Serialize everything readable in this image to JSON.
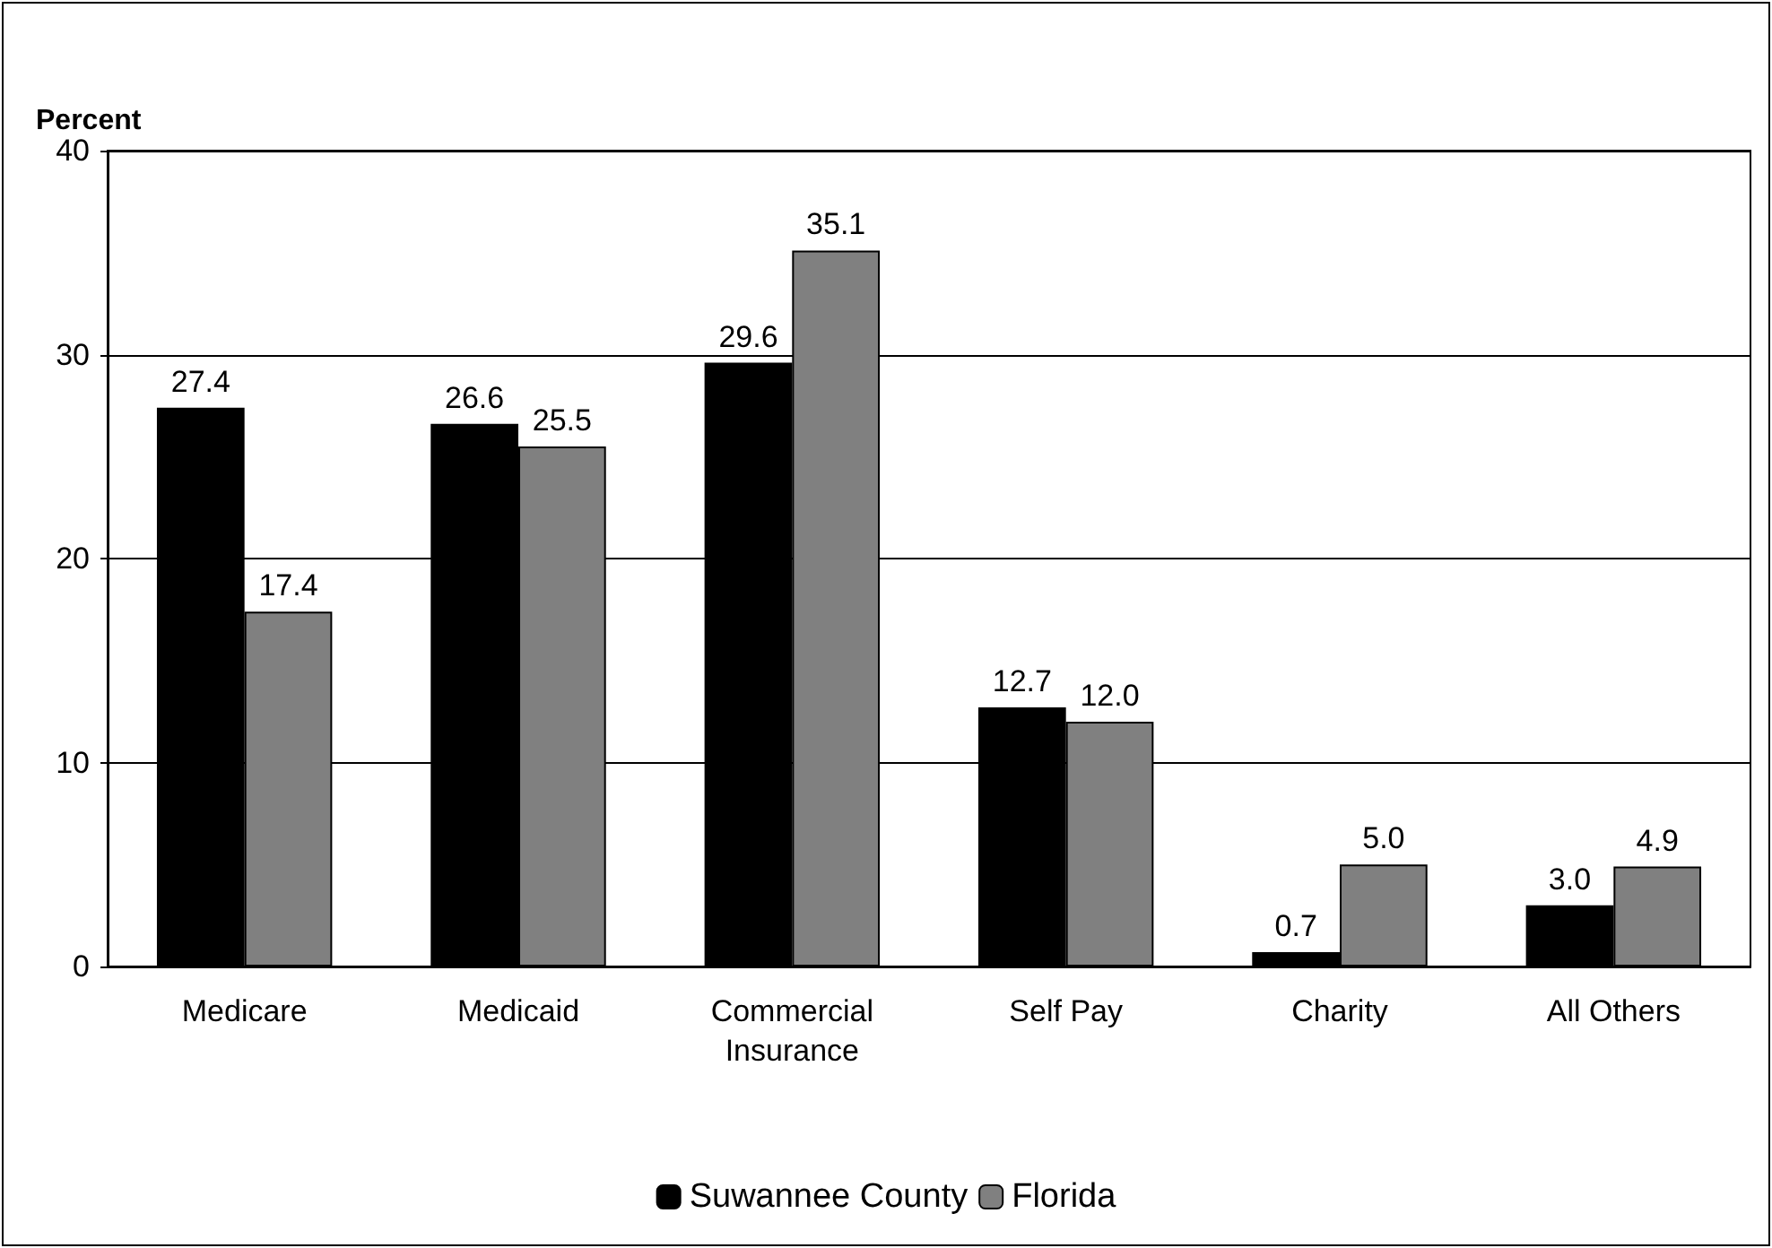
{
  "chart_data": {
    "type": "bar",
    "ylabel": "Percent",
    "categories": [
      "Medicare",
      "Medicaid",
      "Commercial\nInsurance",
      "Self Pay",
      "Charity",
      "All Others"
    ],
    "series": [
      {
        "name": "Suwannee County",
        "color": "#000000",
        "values": [
          27.4,
          26.6,
          29.6,
          12.7,
          0.7,
          3.0
        ],
        "value_labels": [
          "27.4",
          "26.6",
          "29.6",
          "12.7",
          "0.7",
          "3.0"
        ]
      },
      {
        "name": "Florida",
        "color": "#808080",
        "values": [
          17.4,
          25.5,
          35.1,
          12.0,
          5.0,
          4.9
        ],
        "value_labels": [
          "17.4",
          "25.5",
          "35.1",
          "12.0",
          "5.0",
          "4.9"
        ]
      }
    ],
    "ylim": [
      0,
      40
    ],
    "yticks": [
      0,
      10,
      20,
      30,
      40
    ],
    "grid": "y",
    "legend": "bottom"
  }
}
